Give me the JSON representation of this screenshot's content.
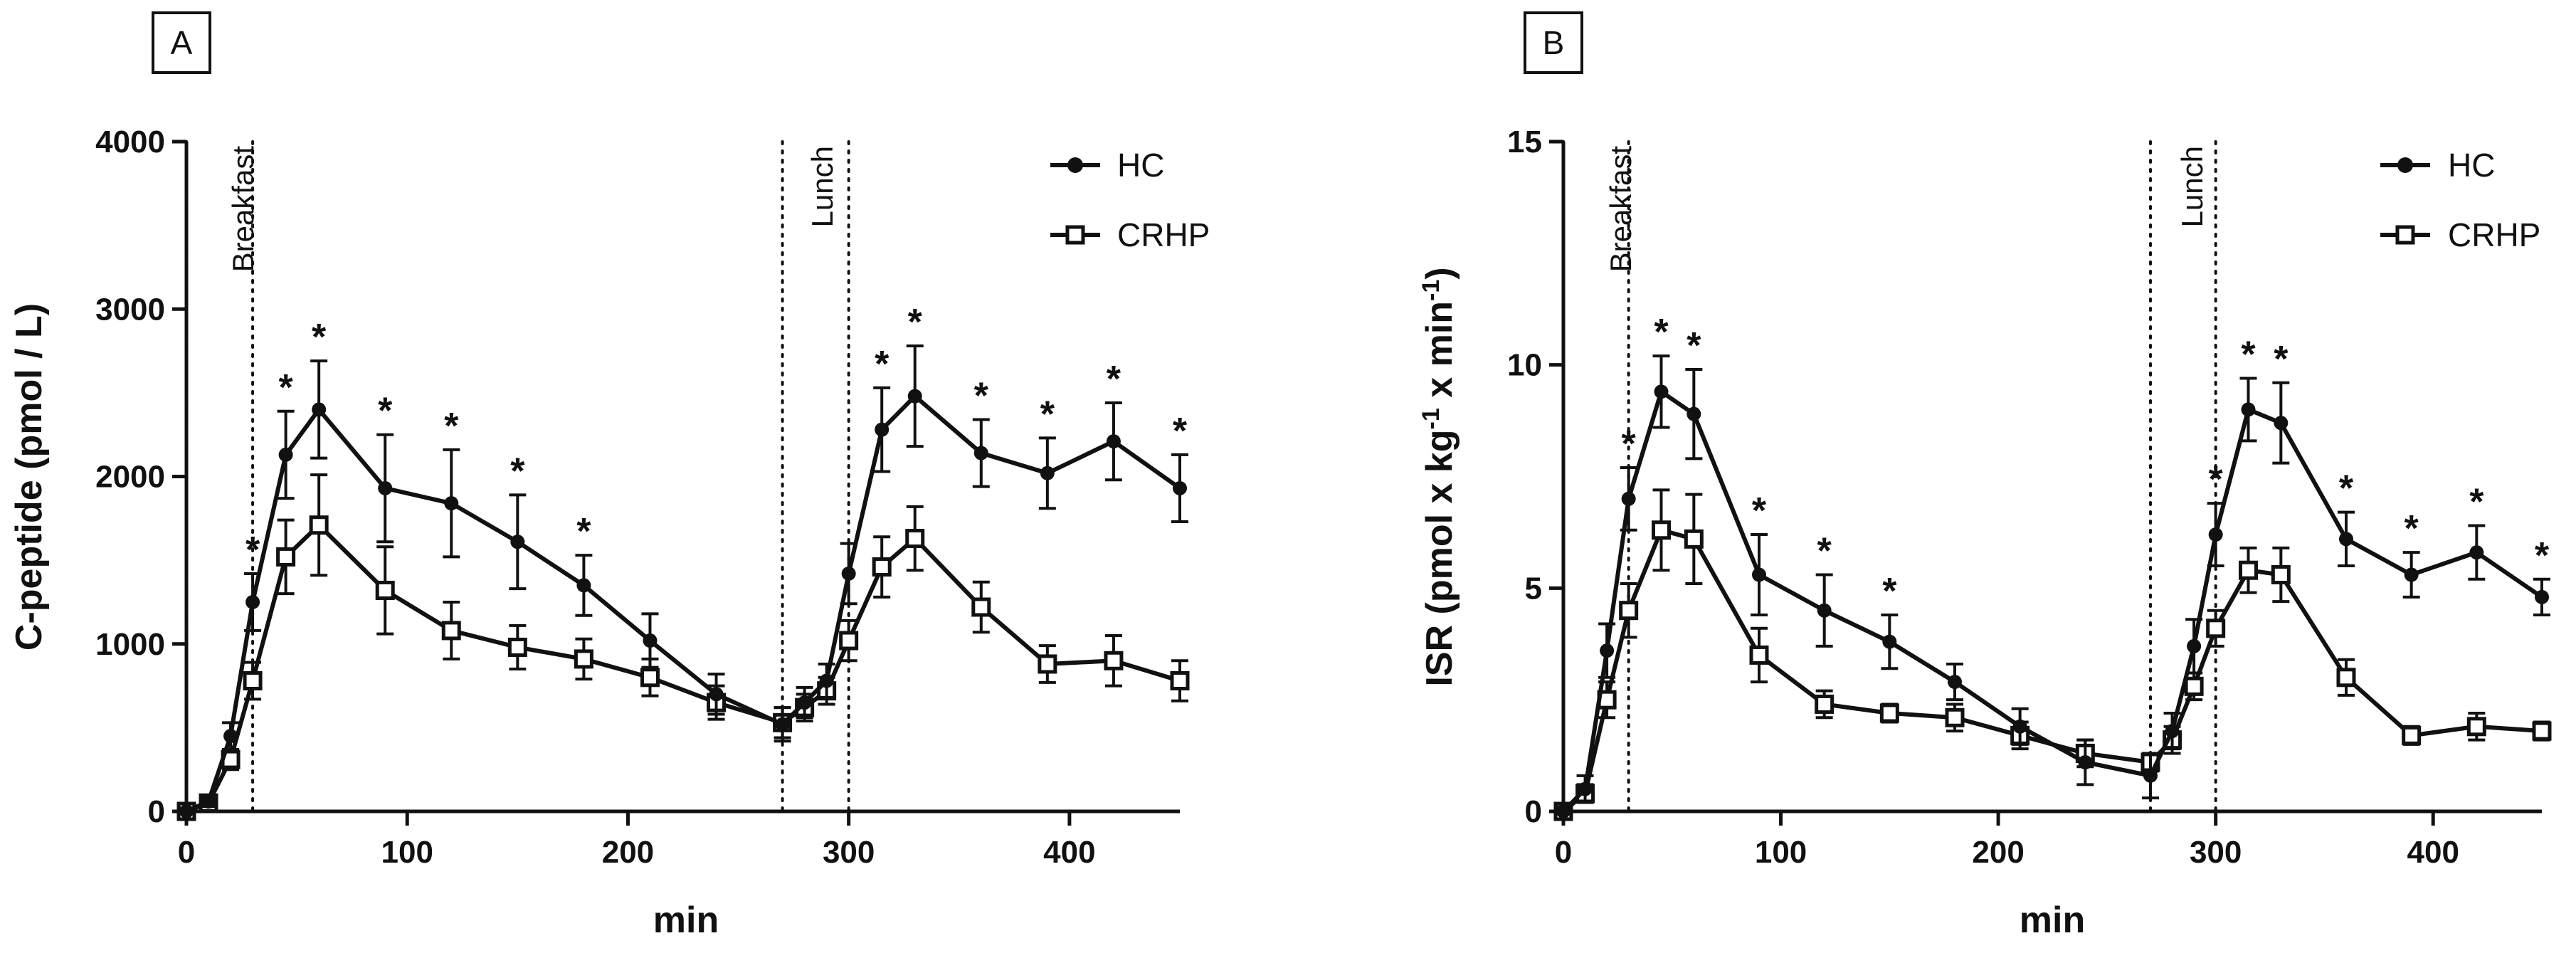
{
  "chart_data": [
    {
      "panel_label": "A",
      "type": "line",
      "xlabel": "min",
      "ylabel": "C-peptide (pmol / L)",
      "xlim": [
        0,
        450
      ],
      "ylim": [
        0,
        4000
      ],
      "x_ticks": [
        "0",
        "100",
        "200",
        "300",
        "400"
      ],
      "x_tick_values": [
        0,
        100,
        200,
        300,
        400
      ],
      "y_ticks": [
        "0",
        "1000",
        "2000",
        "3000",
        "4000"
      ],
      "y_tick_values": [
        0,
        1000,
        2000,
        3000,
        4000
      ],
      "legend_position": "top-right",
      "meal_windows": [
        {
          "label": "Breakfast",
          "start": 0,
          "end": 30
        },
        {
          "label": "Lunch",
          "start": 270,
          "end": 300
        }
      ],
      "series": [
        {
          "name": "HC",
          "marker": "circle",
          "x": [
            0,
            10,
            20,
            30,
            45,
            60,
            90,
            120,
            150,
            180,
            210,
            240,
            270,
            280,
            290,
            300,
            315,
            330,
            360,
            390,
            420,
            450
          ],
          "y": [
            0,
            60,
            450,
            1250,
            2130,
            2400,
            1930,
            1840,
            1610,
            1350,
            1020,
            700,
            520,
            650,
            780,
            1420,
            2280,
            2480,
            2140,
            2020,
            2210,
            1930
          ],
          "err": [
            20,
            30,
            80,
            170,
            260,
            290,
            320,
            320,
            280,
            180,
            160,
            120,
            100,
            90,
            100,
            180,
            250,
            300,
            200,
            210,
            230,
            200
          ]
        },
        {
          "name": "CRHP",
          "marker": "open-square",
          "x": [
            0,
            10,
            20,
            30,
            45,
            60,
            90,
            120,
            150,
            180,
            210,
            240,
            270,
            280,
            290,
            300,
            315,
            330,
            360,
            390,
            420,
            450
          ],
          "y": [
            0,
            50,
            310,
            780,
            1520,
            1710,
            1320,
            1080,
            980,
            910,
            800,
            650,
            530,
            620,
            720,
            1020,
            1460,
            1630,
            1220,
            880,
            900,
            780
          ],
          "err": [
            20,
            30,
            60,
            110,
            220,
            300,
            260,
            170,
            130,
            120,
            110,
            100,
            90,
            80,
            80,
            120,
            180,
            190,
            150,
            110,
            150,
            120
          ]
        }
      ],
      "significance_marker": "*",
      "significant_x": [
        30,
        45,
        60,
        90,
        120,
        150,
        180,
        315,
        330,
        360,
        390,
        420,
        450
      ]
    },
    {
      "panel_label": "B",
      "type": "line",
      "xlabel": "min",
      "ylabel": "ISR (pmol x kg-1 x min-1)",
      "ylabel_parts": {
        "a": "ISR (pmol x kg",
        "sup1": "-1",
        "b": " x min",
        "sup2": "-1",
        "c": ")"
      },
      "xlim": [
        0,
        450
      ],
      "ylim": [
        0,
        15
      ],
      "x_ticks": [
        "0",
        "100",
        "200",
        "300",
        "400"
      ],
      "x_tick_values": [
        0,
        100,
        200,
        300,
        400
      ],
      "y_ticks": [
        "0",
        "5",
        "10",
        "15"
      ],
      "y_tick_values": [
        0,
        5,
        10,
        15
      ],
      "legend_position": "top-right",
      "meal_windows": [
        {
          "label": "Breakfast",
          "start": 0,
          "end": 30
        },
        {
          "label": "Lunch",
          "start": 270,
          "end": 300
        }
      ],
      "series": [
        {
          "name": "HC",
          "marker": "circle",
          "x": [
            0,
            10,
            20,
            30,
            45,
            60,
            90,
            120,
            150,
            180,
            210,
            240,
            270,
            280,
            290,
            300,
            315,
            330,
            360,
            390,
            420,
            450
          ],
          "y": [
            0,
            0.5,
            3.6,
            7.0,
            9.4,
            8.9,
            5.3,
            4.5,
            3.8,
            2.9,
            1.9,
            1.1,
            0.8,
            1.8,
            3.7,
            6.2,
            9.0,
            8.7,
            6.1,
            5.3,
            5.8,
            4.8
          ],
          "err": [
            0.1,
            0.3,
            0.6,
            0.7,
            0.8,
            1.0,
            0.9,
            0.8,
            0.6,
            0.4,
            0.4,
            0.5,
            0.5,
            0.4,
            0.6,
            0.7,
            0.7,
            0.9,
            0.6,
            0.5,
            0.6,
            0.4
          ]
        },
        {
          "name": "CRHP",
          "marker": "open-square",
          "x": [
            0,
            10,
            20,
            30,
            45,
            60,
            90,
            120,
            150,
            180,
            210,
            240,
            270,
            280,
            290,
            300,
            315,
            330,
            360,
            390,
            420,
            450
          ],
          "y": [
            0,
            0.4,
            2.5,
            4.5,
            6.3,
            6.1,
            3.5,
            2.4,
            2.2,
            2.1,
            1.7,
            1.3,
            1.1,
            1.6,
            2.8,
            4.1,
            5.4,
            5.3,
            3.0,
            1.7,
            1.9,
            1.8
          ],
          "err": [
            0.1,
            0.2,
            0.4,
            0.6,
            0.9,
            1.0,
            0.6,
            0.3,
            0.2,
            0.3,
            0.3,
            0.3,
            0.2,
            0.3,
            0.3,
            0.4,
            0.5,
            0.6,
            0.4,
            0.2,
            0.3,
            0.2
          ]
        }
      ],
      "significance_marker": "*",
      "significant_x": [
        30,
        45,
        60,
        90,
        120,
        150,
        300,
        315,
        330,
        360,
        390,
        420,
        450
      ]
    }
  ]
}
